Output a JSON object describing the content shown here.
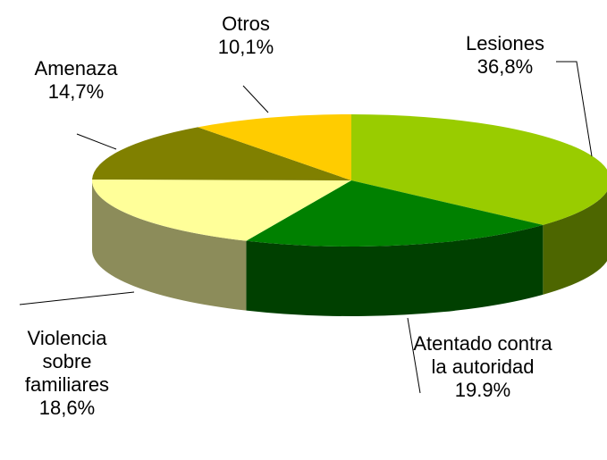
{
  "chart_data": {
    "type": "pie3d",
    "categories": [
      "Lesiones",
      "Atentado contra la autoridad",
      "Violencia sobre familiares",
      "Amenaza",
      "Otros"
    ],
    "values": [
      36.8,
      19.9,
      18.6,
      14.7,
      10.1
    ],
    "value_labels": [
      "36,8%",
      "19.9%",
      "18,6%",
      "14,7%",
      "10,1%"
    ],
    "colors": [
      "#99cc00",
      "#008000",
      "#ffff99",
      "#808000",
      "#ffcc00"
    ],
    "side_colors": [
      "#4d6600",
      "#004000",
      "#8c8c5a",
      "#404000",
      "#806600"
    ]
  }
}
